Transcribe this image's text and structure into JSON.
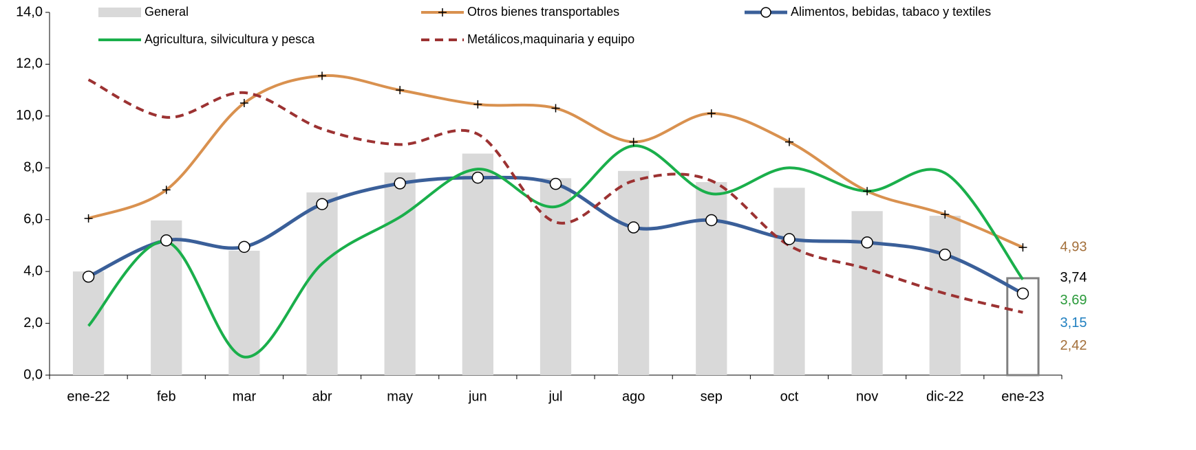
{
  "chart_data": {
    "type": "combo",
    "categories": [
      "ene-22",
      "feb",
      "mar",
      "abr",
      "may",
      "jun",
      "jul",
      "ago",
      "sep",
      "oct",
      "nov",
      "dic-22",
      "ene-23"
    ],
    "ylim": [
      0,
      14
    ],
    "yticks": [
      {
        "value": 0,
        "label": "0,0"
      },
      {
        "value": 2,
        "label": "2,0"
      },
      {
        "value": 4,
        "label": "4,0"
      },
      {
        "value": 6,
        "label": "6,0"
      },
      {
        "value": 8,
        "label": "8,0"
      },
      {
        "value": 10,
        "label": "10,0"
      },
      {
        "value": 12,
        "label": "12,0"
      },
      {
        "value": 14,
        "label": "14,0"
      }
    ],
    "grid": false,
    "legend": "top",
    "series": [
      {
        "name": "General",
        "type": "bar",
        "color": "#d9d9d9",
        "outline_last": true,
        "outline_color": "#808080",
        "label_color": "#000000",
        "values": [
          4.0,
          5.97,
          4.8,
          7.05,
          7.82,
          8.55,
          7.6,
          7.88,
          7.45,
          7.23,
          6.33,
          6.15,
          3.74
        ],
        "value_labels": [
          null,
          null,
          null,
          null,
          null,
          null,
          null,
          null,
          null,
          null,
          null,
          null,
          "3,74"
        ]
      },
      {
        "name": "Otros bienes transportables",
        "type": "line",
        "color": "#d9914f",
        "marker": "plus",
        "dash": false,
        "label_color": "#a36f3a",
        "values": [
          6.05,
          7.15,
          10.5,
          11.55,
          11.0,
          10.45,
          10.3,
          9.0,
          10.1,
          9.0,
          7.1,
          6.2,
          4.93
        ],
        "value_labels": [
          null,
          null,
          null,
          null,
          null,
          null,
          null,
          null,
          null,
          null,
          null,
          null,
          "4,93"
        ]
      },
      {
        "name": "Alimentos, bebidas, tabaco y textiles",
        "type": "line",
        "color": "#3a5f99",
        "marker": "circle",
        "dash": false,
        "label_color": "#1f7fc0",
        "values": [
          3.8,
          5.2,
          4.95,
          6.6,
          7.4,
          7.62,
          7.38,
          5.7,
          5.98,
          5.25,
          5.12,
          4.65,
          3.15
        ],
        "value_labels": [
          null,
          null,
          null,
          null,
          null,
          null,
          null,
          null,
          null,
          null,
          null,
          null,
          "3,15"
        ]
      },
      {
        "name": "Agricultura, silvicultura y pesca",
        "type": "line",
        "color": "#1aaf4b",
        "marker": "none",
        "dash": false,
        "label_color": "#2a9a3a",
        "values": [
          1.9,
          5.15,
          0.7,
          4.3,
          6.1,
          7.95,
          6.5,
          8.85,
          7.0,
          8.0,
          7.1,
          7.8,
          3.69
        ],
        "value_labels": [
          null,
          null,
          null,
          null,
          null,
          null,
          null,
          null,
          null,
          null,
          null,
          null,
          "3,69"
        ]
      },
      {
        "name": "Metálicos,maquinaria y equipo",
        "type": "line",
        "color": "#9c3232",
        "marker": "none",
        "dash": true,
        "label_color": "#a36f3a",
        "values": [
          11.4,
          9.95,
          10.9,
          9.5,
          8.9,
          9.3,
          5.9,
          7.5,
          7.5,
          5.0,
          4.1,
          3.15,
          2.42
        ],
        "value_labels": [
          null,
          null,
          null,
          null,
          null,
          null,
          null,
          null,
          null,
          null,
          null,
          null,
          "2,42"
        ]
      }
    ]
  }
}
